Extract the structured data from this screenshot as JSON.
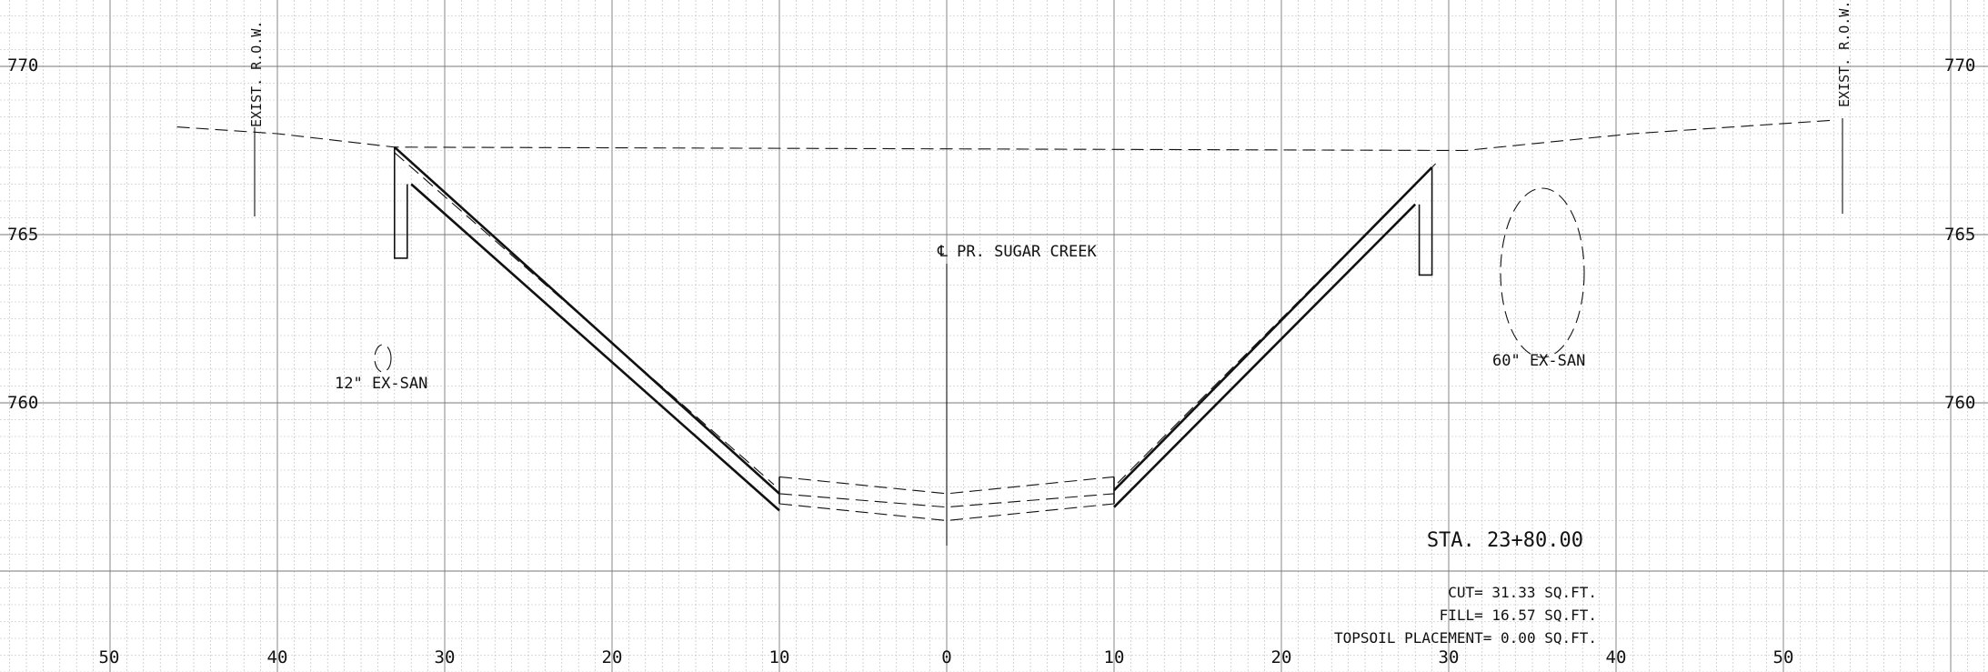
{
  "elevation_labels": [
    "770",
    "765",
    "760"
  ],
  "offset_labels": [
    "50",
    "40",
    "30",
    "20",
    "10",
    "0",
    "10",
    "20",
    "30",
    "40",
    "50"
  ],
  "row_left_label": "EXIST. R.O.W.",
  "row_right_label": "EXIST. R.O.W.",
  "centerline_label": "℄ PR. SUGAR CREEK",
  "pipe_small_label": "12\" EX-SAN",
  "pipe_large_label": "60\" EX-SAN",
  "station_label": "STA. 23+80.00",
  "cut_label": "CUT= 31.33 SQ.FT.",
  "fill_label": "FILL= 16.57 SQ.FT.",
  "topsoil_label": "TOPSOIL PLACEMENT= 0.00 SQ.FT.",
  "chart_data": {
    "type": "cross-section",
    "xlim": [
      -55,
      55
    ],
    "ylim": [
      757,
      771
    ],
    "existing_ground": [
      [
        -46,
        768.2
      ],
      [
        -40,
        768.0
      ],
      [
        -33,
        767.6
      ],
      [
        31,
        767.5
      ],
      [
        41,
        768.0
      ],
      [
        53,
        768.4
      ]
    ],
    "proposed_channel": [
      [
        -33,
        767.6
      ],
      [
        -10,
        757.3
      ],
      [
        10,
        757.4
      ],
      [
        29,
        767.0
      ]
    ],
    "proposed_liner": [
      [
        -32,
        766.5
      ],
      [
        -10,
        756.8
      ],
      [
        10,
        756.9
      ],
      [
        28,
        765.9
      ]
    ],
    "pipe_small": {
      "offset": -34,
      "elevation": 762.3,
      "width_ft": 1.0,
      "height_ft": 0.8
    },
    "pipe_large": {
      "offset": 35,
      "elevation": 763.6,
      "width_ft": 5.0,
      "height_ft": 5.0
    }
  }
}
